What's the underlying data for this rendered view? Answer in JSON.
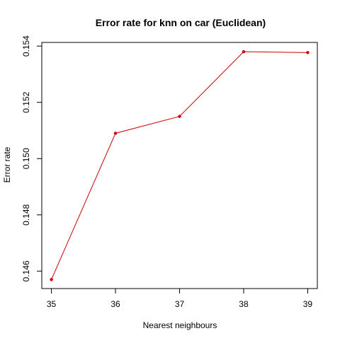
{
  "chart_data": {
    "type": "line",
    "title": "Error rate for knn on car (Euclidean)",
    "xlabel": "Nearest neighbours",
    "ylabel": "Error rate",
    "x": [
      35,
      36,
      37,
      38,
      39
    ],
    "series": [
      {
        "values": [
          0.1457,
          0.1509,
          0.1515,
          0.1538,
          0.15377
        ],
        "color": "#cc0000"
      }
    ],
    "xticks": [
      "35",
      "36",
      "37",
      "38",
      "39"
    ],
    "yticks": [
      "0.146",
      "0.148",
      "0.150",
      "0.152",
      "0.154"
    ],
    "xlim": [
      34.85,
      39.15
    ],
    "ylim": [
      0.14538,
      0.15413
    ],
    "grid": false,
    "legend": "none",
    "marker": "filled-circle"
  }
}
